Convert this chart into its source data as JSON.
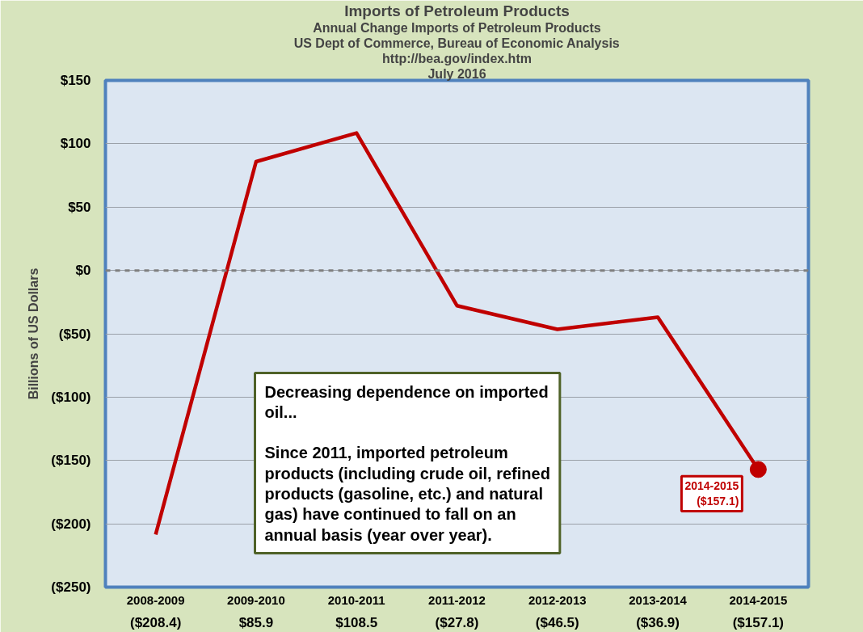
{
  "chart_data": {
    "type": "line",
    "title": "Imports of Petroleum Products",
    "subtitle": "Annual Change Imports of Petroleum Products",
    "ylabel": "Billions of US Dollars",
    "categories": [
      "2008-2009",
      "2009-2010",
      "2010-2011",
      "2011-2012",
      "2012-2013",
      "2013-2014",
      "2014-2015"
    ],
    "series": [
      {
        "color": "#c00000",
        "values": [
          -208.4,
          85.9,
          108.5,
          -27.8,
          -46.5,
          -36.9,
          -157.1
        ],
        "value_labels": [
          "($208.4)",
          "$85.9",
          "$108.5",
          "($27.8)",
          "($46.5)",
          "($36.9)",
          "($157.1)"
        ]
      }
    ],
    "ylim": [
      -250,
      150
    ],
    "yticks": [
      {
        "value": 150,
        "label": "$150"
      },
      {
        "value": 100,
        "label": "$100"
      },
      {
        "value": 50,
        "label": "$50"
      },
      {
        "value": 0,
        "label": "$0"
      },
      {
        "value": -50,
        "label": "($50)"
      },
      {
        "value": -100,
        "label": "($100)"
      },
      {
        "value": -150,
        "label": "($150)"
      },
      {
        "value": -200,
        "label": "($200)"
      },
      {
        "value": -250,
        "label": "($250)"
      }
    ],
    "ref_lines": [
      {
        "axis": "y",
        "value": 0,
        "color": "#808080",
        "line_style": "dashed"
      }
    ],
    "grid": "y",
    "marker": "none",
    "line_style": "solid",
    "annotations": [
      "US Dept of Commerce, Bureau of Economic Analysis",
      "http://bea.gov/index.htm",
      "July 2016",
      "Decreasing dependence on imported oil...",
      "Since 2011, imported petroleum products (including crude oil, refined products (gasoline, etc.) and natural gas) have continued to fall on an annual basis (year over year).",
      {
        "text": "2014-2015\n($157.1)",
        "x": "2014-2015",
        "y": -157.1
      }
    ]
  }
}
